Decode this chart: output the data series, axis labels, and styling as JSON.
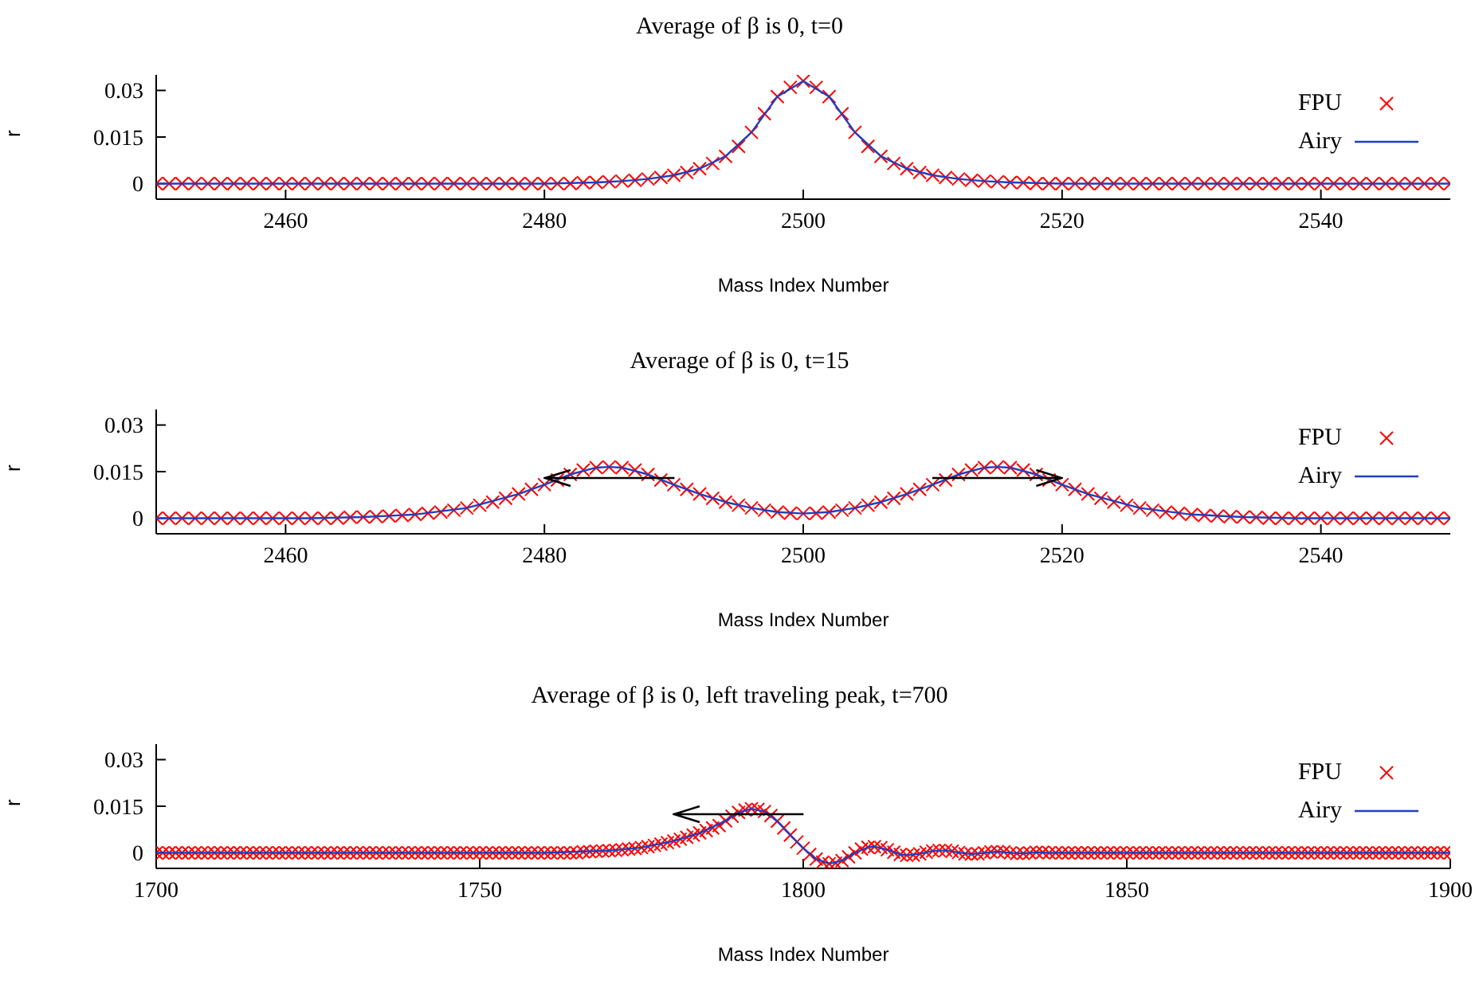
{
  "chart_data": [
    {
      "type": "scatter",
      "title": "Average of β is 0, t=0",
      "xlabel": "Mass Index Number",
      "ylabel": "r",
      "xlim": [
        2450,
        2550
      ],
      "xticks": [
        2460,
        2480,
        2500,
        2520,
        2540
      ],
      "ylim": [
        -0.005,
        0.035
      ],
      "yticks": [
        0,
        0.015,
        0.03
      ],
      "grid": false,
      "legend": "top right",
      "x": [
        2450,
        2451,
        2452,
        2453,
        2454,
        2455,
        2456,
        2457,
        2458,
        2459,
        2460,
        2461,
        2462,
        2463,
        2464,
        2465,
        2466,
        2467,
        2468,
        2469,
        2470,
        2471,
        2472,
        2473,
        2474,
        2475,
        2476,
        2477,
        2478,
        2479,
        2480,
        2481,
        2482,
        2483,
        2484,
        2485,
        2486,
        2487,
        2488,
        2489,
        2490,
        2491,
        2492,
        2493,
        2494,
        2495,
        2496,
        2497,
        2498,
        2499,
        2500,
        2501,
        2502,
        2503,
        2504,
        2505,
        2506,
        2507,
        2508,
        2509,
        2510,
        2511,
        2512,
        2513,
        2514,
        2515,
        2516,
        2517,
        2518,
        2519,
        2520,
        2521,
        2522,
        2523,
        2524,
        2525,
        2526,
        2527,
        2528,
        2529,
        2530,
        2531,
        2532,
        2533,
        2534,
        2535,
        2536,
        2537,
        2538,
        2539,
        2540,
        2541,
        2542,
        2543,
        2544,
        2545,
        2546,
        2547,
        2548,
        2549,
        2550
      ],
      "series": [
        {
          "name": "FPU",
          "marker": "cross",
          "color": "#ff0000",
          "values": [
            0,
            0,
            0,
            0,
            0,
            0,
            0,
            0,
            0,
            0,
            0,
            0,
            0,
            0,
            0,
            0,
            0,
            0,
            0,
            0,
            0,
            0,
            0,
            0,
            0,
            0,
            0,
            0,
            0,
            0,
            0,
            0,
            0,
            0.0003,
            0.0004,
            0.0006,
            0.0008,
            0.0011,
            0.0015,
            0.002,
            0.0027,
            0.0036,
            0.0048,
            0.0065,
            0.0088,
            0.012,
            0.0165,
            0.0225,
            0.028,
            0.031,
            0.033,
            0.031,
            0.028,
            0.0225,
            0.0165,
            0.012,
            0.0088,
            0.0065,
            0.0048,
            0.0036,
            0.0027,
            0.002,
            0.0015,
            0.0011,
            0.0008,
            0.0006,
            0.0004,
            0.0003,
            0,
            0,
            0,
            0,
            0,
            0,
            0,
            0,
            0,
            0,
            0,
            0,
            0,
            0,
            0,
            0,
            0,
            0,
            0,
            0,
            0,
            0,
            0,
            0,
            0,
            0,
            0,
            0,
            0,
            0,
            0,
            0,
            0
          ]
        },
        {
          "name": "Airy",
          "type": "line",
          "marker": "none",
          "line_style": "solid",
          "color": "#1f3fbf",
          "x": [
            2450,
            2480,
            2484,
            2486,
            2488,
            2490,
            2492,
            2494,
            2496,
            2498,
            2500,
            2502,
            2504,
            2506,
            2508,
            2510,
            2512,
            2514,
            2516,
            2520,
            2550
          ],
          "values": [
            0,
            0,
            0.0004,
            0.0008,
            0.0015,
            0.0027,
            0.0048,
            0.0088,
            0.0165,
            0.028,
            0.033,
            0.028,
            0.0165,
            0.0088,
            0.0048,
            0.0027,
            0.0015,
            0.0008,
            0.0004,
            0,
            0
          ]
        }
      ]
    },
    {
      "type": "scatter",
      "title": "Average of β is 0, t=15",
      "xlabel": "Mass Index Number",
      "ylabel": "r",
      "xlim": [
        2450,
        2550
      ],
      "xticks": [
        2460,
        2480,
        2500,
        2520,
        2540
      ],
      "ylim": [
        -0.005,
        0.035
      ],
      "yticks": [
        0,
        0.015,
        0.03
      ],
      "grid": false,
      "legend": "top right",
      "x": [
        2450,
        2451,
        2452,
        2453,
        2454,
        2455,
        2456,
        2457,
        2458,
        2459,
        2460,
        2461,
        2462,
        2463,
        2464,
        2465,
        2466,
        2467,
        2468,
        2469,
        2470,
        2471,
        2472,
        2473,
        2474,
        2475,
        2476,
        2477,
        2478,
        2479,
        2480,
        2481,
        2482,
        2483,
        2484,
        2485,
        2486,
        2487,
        2488,
        2489,
        2490,
        2491,
        2492,
        2493,
        2494,
        2495,
        2496,
        2497,
        2498,
        2499,
        2500,
        2501,
        2502,
        2503,
        2504,
        2505,
        2506,
        2507,
        2508,
        2509,
        2510,
        2511,
        2512,
        2513,
        2514,
        2515,
        2516,
        2517,
        2518,
        2519,
        2520,
        2521,
        2522,
        2523,
        2524,
        2525,
        2526,
        2527,
        2528,
        2529,
        2530,
        2531,
        2532,
        2533,
        2534,
        2535,
        2536,
        2537,
        2538,
        2539,
        2540,
        2541,
        2542,
        2543,
        2544,
        2545,
        2546,
        2547,
        2548,
        2549,
        2550
      ],
      "series": [
        {
          "name": "FPU",
          "marker": "cross",
          "color": "#ff0000",
          "values": [
            0,
            0,
            0,
            0,
            0,
            0,
            0,
            0,
            0,
            0,
            0,
            0,
            0,
            0,
            0,
            0.0003,
            0.0004,
            0.0005,
            0.0007,
            0.0009,
            0.0012,
            0.0016,
            0.002,
            0.0026,
            0.0033,
            0.0042,
            0.0052,
            0.0064,
            0.0078,
            0.0093,
            0.0108,
            0.0123,
            0.0141,
            0.0155,
            0.0163,
            0.0165,
            0.0163,
            0.0155,
            0.0141,
            0.0123,
            0.0108,
            0.0093,
            0.0078,
            0.0064,
            0.0052,
            0.0042,
            0.0033,
            0.0026,
            0.002,
            0.0016,
            0.0015,
            0.0016,
            0.002,
            0.0026,
            0.0033,
            0.0042,
            0.0052,
            0.0064,
            0.0078,
            0.0093,
            0.0108,
            0.0123,
            0.0141,
            0.0155,
            0.0163,
            0.0165,
            0.0163,
            0.0155,
            0.0141,
            0.0123,
            0.0108,
            0.0093,
            0.0078,
            0.0064,
            0.0052,
            0.0042,
            0.0033,
            0.0026,
            0.002,
            0.0016,
            0.0012,
            0.0009,
            0.0007,
            0.0005,
            0.0004,
            0.0003,
            0,
            0,
            0,
            0,
            0,
            0,
            0,
            0,
            0,
            0,
            0,
            0,
            0,
            0,
            0
          ]
        },
        {
          "name": "Airy",
          "type": "line",
          "marker": "none",
          "line_style": "solid",
          "color": "#1f3fbf",
          "x": [
            2450,
            2462,
            2466,
            2470,
            2474,
            2478,
            2480,
            2482,
            2484,
            2485,
            2486,
            2488,
            2490,
            2492,
            2494,
            2496,
            2498,
            2500,
            2502,
            2504,
            2506,
            2508,
            2510,
            2512,
            2514,
            2515,
            2516,
            2518,
            2520,
            2522,
            2526,
            2530,
            2534,
            2538,
            2550
          ],
          "values": [
            0,
            0,
            0.0004,
            0.0012,
            0.0033,
            0.0078,
            0.0108,
            0.0141,
            0.0163,
            0.0165,
            0.0163,
            0.0141,
            0.0108,
            0.0078,
            0.0052,
            0.0033,
            0.002,
            0.0015,
            0.002,
            0.0033,
            0.0052,
            0.0078,
            0.0108,
            0.0141,
            0.0163,
            0.0165,
            0.0163,
            0.0141,
            0.0108,
            0.0078,
            0.0033,
            0.0012,
            0.0004,
            0,
            0
          ]
        }
      ]
    },
    {
      "type": "scatter",
      "title": "Average of β is 0, left traveling peak, t=700",
      "xlabel": "Mass Index Number",
      "ylabel": "r",
      "xlim": [
        1700,
        1900
      ],
      "xticks": [
        1700,
        1750,
        1800,
        1850,
        1900
      ],
      "ylim": [
        -0.005,
        0.035
      ],
      "yticks": [
        0,
        0.015,
        0.03
      ],
      "grid": false,
      "legend": "top right",
      "x": [
        1700,
        1701,
        1702,
        1703,
        1704,
        1705,
        1706,
        1707,
        1708,
        1709,
        1710,
        1711,
        1712,
        1713,
        1714,
        1715,
        1716,
        1717,
        1718,
        1719,
        1720,
        1721,
        1722,
        1723,
        1724,
        1725,
        1726,
        1727,
        1728,
        1729,
        1730,
        1731,
        1732,
        1733,
        1734,
        1735,
        1736,
        1737,
        1738,
        1739,
        1740,
        1741,
        1742,
        1743,
        1744,
        1745,
        1746,
        1747,
        1748,
        1749,
        1750,
        1751,
        1752,
        1753,
        1754,
        1755,
        1756,
        1757,
        1758,
        1759,
        1760,
        1761,
        1762,
        1763,
        1764,
        1765,
        1766,
        1767,
        1768,
        1769,
        1770,
        1771,
        1772,
        1773,
        1774,
        1775,
        1776,
        1777,
        1778,
        1779,
        1780,
        1781,
        1782,
        1783,
        1784,
        1785,
        1786,
        1787,
        1788,
        1789,
        1790,
        1791,
        1792,
        1793,
        1794,
        1795,
        1796,
        1797,
        1798,
        1799,
        1800,
        1801,
        1802,
        1803,
        1804,
        1805,
        1806,
        1807,
        1808,
        1809,
        1810,
        1811,
        1812,
        1813,
        1814,
        1815,
        1816,
        1817,
        1818,
        1819,
        1820,
        1821,
        1822,
        1823,
        1824,
        1825,
        1826,
        1827,
        1828,
        1829,
        1830,
        1831,
        1832,
        1833,
        1834,
        1835,
        1836,
        1837,
        1838,
        1839,
        1840,
        1841,
        1842,
        1843,
        1844,
        1845,
        1846,
        1847,
        1848,
        1849,
        1850,
        1851,
        1852,
        1853,
        1854,
        1855,
        1856,
        1857,
        1858,
        1859,
        1860,
        1861,
        1862,
        1863,
        1864,
        1865,
        1866,
        1867,
        1868,
        1869,
        1870,
        1871,
        1872,
        1873,
        1874,
        1875,
        1876,
        1877,
        1878,
        1879,
        1880,
        1881,
        1882,
        1883,
        1884,
        1885,
        1886,
        1887,
        1888,
        1889,
        1890,
        1891,
        1892,
        1893,
        1894,
        1895,
        1896,
        1897,
        1898,
        1899,
        1900
      ],
      "series": [
        {
          "name": "FPU",
          "marker": "cross",
          "color": "#ff0000",
          "values": [
            0,
            0,
            0,
            0,
            0,
            0,
            0,
            0,
            0,
            0,
            0,
            0,
            0,
            0,
            0,
            0,
            0,
            0,
            0,
            0,
            0,
            0,
            0,
            0,
            0,
            0,
            0,
            0,
            0,
            0,
            0,
            0,
            0,
            0,
            0,
            0,
            0,
            0,
            0,
            0,
            0,
            0,
            0,
            0,
            0,
            0,
            0,
            0,
            0,
            0,
            0,
            0,
            0,
            0,
            0,
            0,
            0,
            0,
            0,
            0,
            0,
            0,
            0,
            0,
            0,
            0,
            0.0003,
            0.0004,
            0.0005,
            0.0006,
            0.0007,
            0.0008,
            0.001,
            0.0012,
            0.0014,
            0.0017,
            0.002,
            0.0024,
            0.0028,
            0.0033,
            0.0038,
            0.0044,
            0.005,
            0.0057,
            0.0064,
            0.0072,
            0.008,
            0.0088,
            0.0103,
            0.0118,
            0.013,
            0.0138,
            0.0142,
            0.014,
            0.0133,
            0.012,
            0.0102,
            0.008,
            0.0057,
            0.0035,
            0.0015,
            -0.0005,
            -0.002,
            -0.003,
            -0.0035,
            -0.0033,
            -0.0025,
            -0.0013,
            0,
            0.0012,
            0.0018,
            0.002,
            0.0017,
            0.001,
            0.0002,
            -0.0005,
            -0.0008,
            -0.0007,
            -0.0003,
            0.0002,
            0.0006,
            0.0008,
            0.0008,
            0.0005,
            0.0001,
            -0.0003,
            -0.0004,
            -0.0003,
            0,
            0.0003,
            0.0004,
            0.0003,
            0,
            -0.0002,
            -0.0002,
            0,
            0.0002,
            0.0002,
            0,
            0,
            0,
            0,
            0,
            0,
            0,
            0,
            0,
            0,
            0,
            0,
            0,
            0,
            0,
            0,
            0,
            0,
            0,
            0,
            0,
            0,
            0,
            0,
            0,
            0,
            0,
            0,
            0,
            0,
            0,
            0,
            0,
            0,
            0,
            0,
            0,
            0,
            0,
            0,
            0,
            0,
            0,
            0,
            0,
            0,
            0,
            0,
            0,
            0,
            0,
            0,
            0,
            0,
            0,
            0,
            0,
            0,
            0,
            0,
            0,
            0,
            0
          ]
        },
        {
          "name": "Airy",
          "type": "line",
          "marker": "none",
          "line_style": "solid",
          "color": "#1f3fbf",
          "x": [
            1700,
            1760,
            1770,
            1775,
            1780,
            1784,
            1788,
            1790,
            1792,
            1794,
            1796,
            1798,
            1800,
            1802,
            1804,
            1806,
            1808,
            1810,
            1811,
            1813,
            1815,
            1816,
            1818,
            1820,
            1822,
            1824,
            1826,
            1828,
            1830,
            1832,
            1834,
            1836,
            1838,
            1850,
            1900
          ],
          "values": [
            0,
            0,
            0.0007,
            0.0017,
            0.0038,
            0.0064,
            0.0103,
            0.013,
            0.0142,
            0.0133,
            0.0102,
            0.0057,
            0.0015,
            -0.002,
            -0.0035,
            -0.0025,
            0,
            0.0018,
            0.002,
            0.001,
            -0.0005,
            -0.0008,
            -0.0003,
            0.0006,
            0.0008,
            0.0001,
            -0.0004,
            0,
            0.0004,
            0,
            -0.0002,
            0.0002,
            0,
            0,
            0
          ]
        }
      ]
    }
  ]
}
